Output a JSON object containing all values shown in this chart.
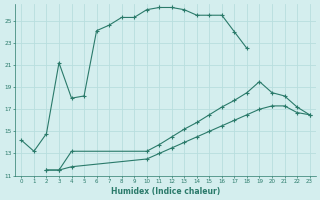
{
  "xlabel": "Humidex (Indice chaleur)",
  "bg_color": "#d4eeee",
  "line_color": "#2a7a6a",
  "grid_color": "#b8dede",
  "xlim": [
    -0.5,
    23.5
  ],
  "ylim": [
    11,
    26.5
  ],
  "yticks": [
    11,
    13,
    15,
    17,
    19,
    21,
    23,
    25
  ],
  "xticks": [
    0,
    1,
    2,
    3,
    4,
    5,
    6,
    7,
    8,
    9,
    10,
    11,
    12,
    13,
    14,
    15,
    16,
    17,
    18,
    19,
    20,
    21,
    22,
    23
  ],
  "curve1_x": [
    0,
    1,
    2,
    3,
    4,
    5,
    6,
    7,
    8,
    9,
    10,
    11,
    12,
    13,
    14,
    15,
    16,
    17,
    18
  ],
  "curve1_y": [
    14.2,
    13.2,
    14.8,
    21.2,
    18.0,
    18.2,
    24.1,
    24.6,
    25.3,
    25.3,
    26.0,
    26.2,
    26.2,
    26.0,
    25.5,
    25.5,
    25.5,
    24.0,
    22.5
  ],
  "curve2_x": [
    2,
    3,
    4,
    10,
    11,
    12,
    13,
    14,
    15,
    16,
    17,
    18,
    19,
    20,
    21,
    22,
    23
  ],
  "curve2_y": [
    11.5,
    11.5,
    13.2,
    13.2,
    13.8,
    14.5,
    15.2,
    15.8,
    16.5,
    17.2,
    17.8,
    18.5,
    19.5,
    18.5,
    18.2,
    17.2,
    16.5
  ],
  "curve3_x": [
    2,
    3,
    4,
    10,
    11,
    12,
    13,
    14,
    15,
    16,
    17,
    18,
    19,
    20,
    21,
    22,
    23
  ],
  "curve3_y": [
    11.5,
    11.5,
    11.8,
    12.5,
    13.0,
    13.5,
    14.0,
    14.5,
    15.0,
    15.5,
    16.0,
    16.5,
    17.0,
    17.3,
    17.3,
    16.7,
    16.5
  ]
}
